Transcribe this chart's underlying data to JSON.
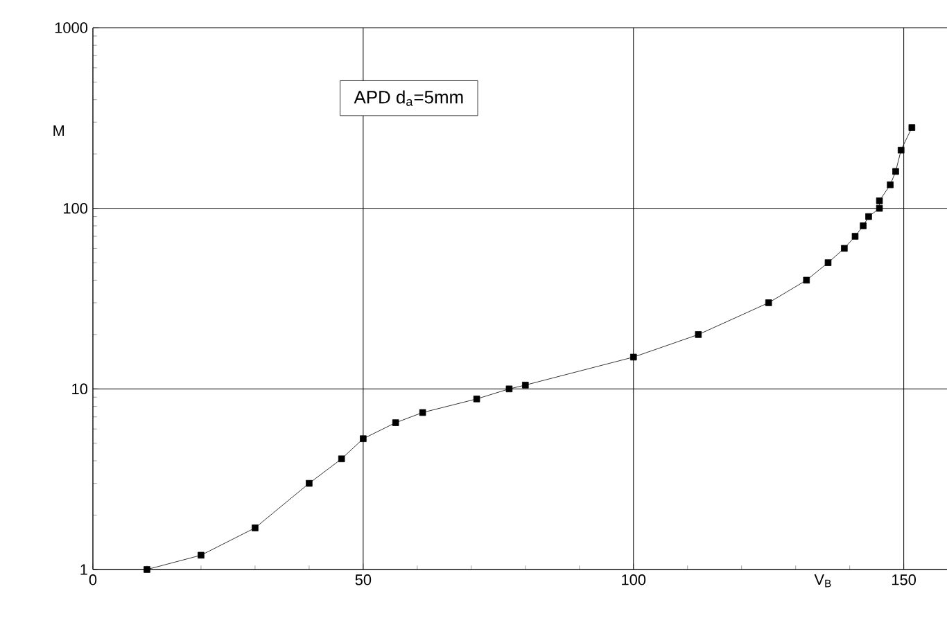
{
  "chart_data": {
    "type": "line",
    "xlabel": "V$_{B}$",
    "ylabel": "M",
    "annotations": [
      "APD d$_{a}$=5mm"
    ],
    "x": [
      10,
      20,
      30,
      40,
      46,
      50,
      56,
      61,
      71,
      77,
      80,
      100,
      112,
      125,
      132,
      136,
      139,
      141,
      142.5,
      143.5,
      145.5,
      145.5,
      147.5,
      148.5,
      149.5,
      151.5
    ],
    "series": [
      {
        "color": "#000000",
        "values": [
          1,
          1.2,
          1.7,
          3,
          4.1,
          5.3,
          6.5,
          7.4,
          8.8,
          10,
          10.5,
          15,
          20,
          30,
          40,
          50,
          60,
          70,
          80,
          90,
          100,
          110,
          135,
          160,
          210,
          280
        ]
      }
    ],
    "xlim": [
      0,
      158
    ],
    "xticks": [
      0,
      50,
      100,
      150
    ],
    "ylim": [
      1,
      1000
    ],
    "yticks": [
      1,
      10,
      100,
      1000
    ],
    "log": "y",
    "grid": true,
    "marker": "square",
    "line_style": "solid"
  }
}
